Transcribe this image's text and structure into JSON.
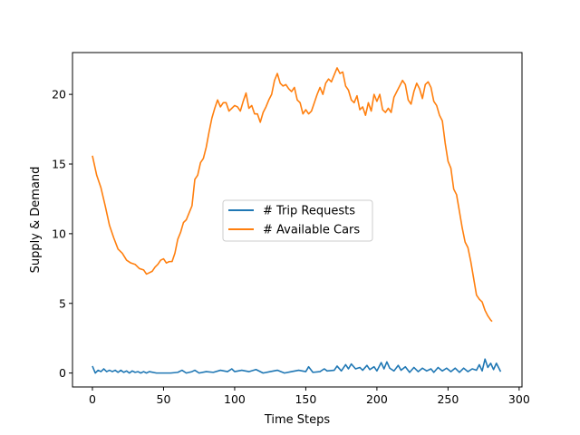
{
  "chart_data": {
    "type": "line",
    "title": "",
    "xlabel": "Time Steps",
    "ylabel": "Supply & Demand",
    "xlim": [
      -14,
      302
    ],
    "ylim": [
      -1,
      23
    ],
    "xticks": [
      0,
      50,
      100,
      150,
      200,
      250,
      300
    ],
    "yticks": [
      0,
      5,
      10,
      15,
      20
    ],
    "grid": false,
    "legend_position": "center",
    "series": [
      {
        "name": "# Trip Requests",
        "color": "#1f77b4",
        "points": [
          [
            0,
            0.5
          ],
          [
            2,
            0
          ],
          [
            4,
            0.2
          ],
          [
            6,
            0.1
          ],
          [
            8,
            0.3
          ],
          [
            10,
            0.1
          ],
          [
            12,
            0.2
          ],
          [
            14,
            0.1
          ],
          [
            16,
            0.2
          ],
          [
            18,
            0.05
          ],
          [
            20,
            0.2
          ],
          [
            22,
            0.05
          ],
          [
            24,
            0.15
          ],
          [
            26,
            0
          ],
          [
            28,
            0.15
          ],
          [
            30,
            0.05
          ],
          [
            32,
            0.1
          ],
          [
            34,
            0
          ],
          [
            36,
            0.1
          ],
          [
            38,
            0
          ],
          [
            40,
            0.1
          ],
          [
            45,
            0
          ],
          [
            50,
            0
          ],
          [
            55,
            0
          ],
          [
            60,
            0.05
          ],
          [
            63,
            0.2
          ],
          [
            66,
            0
          ],
          [
            70,
            0.1
          ],
          [
            72,
            0.2
          ],
          [
            75,
            0
          ],
          [
            80,
            0.1
          ],
          [
            85,
            0.05
          ],
          [
            90,
            0.2
          ],
          [
            95,
            0.1
          ],
          [
            98,
            0.3
          ],
          [
            100,
            0.1
          ],
          [
            105,
            0.2
          ],
          [
            110,
            0.1
          ],
          [
            115,
            0.25
          ],
          [
            120,
            0
          ],
          [
            125,
            0.1
          ],
          [
            130,
            0.2
          ],
          [
            135,
            0
          ],
          [
            140,
            0.1
          ],
          [
            145,
            0.2
          ],
          [
            150,
            0.1
          ],
          [
            152,
            0.45
          ],
          [
            155,
            0.05
          ],
          [
            160,
            0.1
          ],
          [
            163,
            0.3
          ],
          [
            165,
            0.15
          ],
          [
            170,
            0.2
          ],
          [
            172,
            0.5
          ],
          [
            175,
            0.15
          ],
          [
            178,
            0.6
          ],
          [
            180,
            0.3
          ],
          [
            182,
            0.65
          ],
          [
            185,
            0.3
          ],
          [
            188,
            0.4
          ],
          [
            190,
            0.2
          ],
          [
            193,
            0.55
          ],
          [
            195,
            0.25
          ],
          [
            198,
            0.45
          ],
          [
            200,
            0.15
          ],
          [
            203,
            0.75
          ],
          [
            205,
            0.3
          ],
          [
            207,
            0.8
          ],
          [
            209,
            0.35
          ],
          [
            212,
            0.15
          ],
          [
            215,
            0.55
          ],
          [
            217,
            0.2
          ],
          [
            220,
            0.45
          ],
          [
            223,
            0.05
          ],
          [
            226,
            0.4
          ],
          [
            229,
            0.1
          ],
          [
            232,
            0.35
          ],
          [
            235,
            0.15
          ],
          [
            238,
            0.3
          ],
          [
            240,
            0.05
          ],
          [
            243,
            0.4
          ],
          [
            246,
            0.15
          ],
          [
            249,
            0.35
          ],
          [
            252,
            0.1
          ],
          [
            255,
            0.35
          ],
          [
            258,
            0.05
          ],
          [
            261,
            0.35
          ],
          [
            264,
            0.1
          ],
          [
            267,
            0.3
          ],
          [
            270,
            0.2
          ],
          [
            272,
            0.6
          ],
          [
            274,
            0.15
          ],
          [
            276,
            1.0
          ],
          [
            278,
            0.4
          ],
          [
            280,
            0.7
          ],
          [
            282,
            0.25
          ],
          [
            284,
            0.7
          ],
          [
            286,
            0.3
          ],
          [
            287,
            0.1
          ]
        ]
      },
      {
        "name": "# Available Cars",
        "color": "#ff7f0e",
        "points": [
          [
            0,
            15.6
          ],
          [
            3,
            14.2
          ],
          [
            6,
            13.3
          ],
          [
            9,
            12.0
          ],
          [
            12,
            10.6
          ],
          [
            15,
            9.7
          ],
          [
            18,
            8.9
          ],
          [
            21,
            8.6
          ],
          [
            24,
            8.1
          ],
          [
            27,
            7.9
          ],
          [
            30,
            7.8
          ],
          [
            33,
            7.5
          ],
          [
            36,
            7.4
          ],
          [
            38,
            7.1
          ],
          [
            40,
            7.2
          ],
          [
            42,
            7.3
          ],
          [
            44,
            7.6
          ],
          [
            46,
            7.8
          ],
          [
            48,
            8.1
          ],
          [
            50,
            8.2
          ],
          [
            52,
            7.9
          ],
          [
            54,
            8.0
          ],
          [
            56,
            8.0
          ],
          [
            58,
            8.6
          ],
          [
            60,
            9.6
          ],
          [
            62,
            10.1
          ],
          [
            64,
            10.8
          ],
          [
            66,
            11.0
          ],
          [
            68,
            11.5
          ],
          [
            70,
            12.0
          ],
          [
            72,
            13.9
          ],
          [
            74,
            14.2
          ],
          [
            76,
            15.1
          ],
          [
            78,
            15.4
          ],
          [
            80,
            16.2
          ],
          [
            82,
            17.3
          ],
          [
            84,
            18.3
          ],
          [
            86,
            19.0
          ],
          [
            88,
            19.6
          ],
          [
            90,
            19.1
          ],
          [
            92,
            19.4
          ],
          [
            94,
            19.4
          ],
          [
            96,
            18.8
          ],
          [
            98,
            19.0
          ],
          [
            100,
            19.2
          ],
          [
            102,
            19.1
          ],
          [
            104,
            18.8
          ],
          [
            106,
            19.5
          ],
          [
            108,
            20.1
          ],
          [
            110,
            19.0
          ],
          [
            112,
            19.2
          ],
          [
            114,
            18.6
          ],
          [
            116,
            18.6
          ],
          [
            118,
            18.0
          ],
          [
            120,
            18.7
          ],
          [
            122,
            19.1
          ],
          [
            124,
            19.6
          ],
          [
            126,
            20.0
          ],
          [
            128,
            21.0
          ],
          [
            130,
            21.5
          ],
          [
            132,
            20.8
          ],
          [
            134,
            20.6
          ],
          [
            136,
            20.7
          ],
          [
            138,
            20.4
          ],
          [
            140,
            20.2
          ],
          [
            142,
            20.5
          ],
          [
            144,
            19.6
          ],
          [
            146,
            19.4
          ],
          [
            148,
            18.6
          ],
          [
            150,
            18.9
          ],
          [
            152,
            18.6
          ],
          [
            154,
            18.8
          ],
          [
            156,
            19.4
          ],
          [
            158,
            20.0
          ],
          [
            160,
            20.5
          ],
          [
            162,
            20.0
          ],
          [
            164,
            20.8
          ],
          [
            166,
            21.1
          ],
          [
            168,
            20.9
          ],
          [
            170,
            21.4
          ],
          [
            172,
            21.9
          ],
          [
            174,
            21.5
          ],
          [
            176,
            21.6
          ],
          [
            178,
            20.6
          ],
          [
            180,
            20.3
          ],
          [
            182,
            19.6
          ],
          [
            184,
            19.4
          ],
          [
            186,
            19.9
          ],
          [
            188,
            18.9
          ],
          [
            190,
            19.1
          ],
          [
            192,
            18.5
          ],
          [
            194,
            19.4
          ],
          [
            196,
            18.8
          ],
          [
            198,
            20.0
          ],
          [
            200,
            19.5
          ],
          [
            202,
            20.0
          ],
          [
            204,
            18.9
          ],
          [
            206,
            18.7
          ],
          [
            208,
            19.0
          ],
          [
            210,
            18.7
          ],
          [
            212,
            19.8
          ],
          [
            214,
            20.2
          ],
          [
            216,
            20.6
          ],
          [
            218,
            21.0
          ],
          [
            220,
            20.7
          ],
          [
            222,
            19.6
          ],
          [
            224,
            19.3
          ],
          [
            226,
            20.2
          ],
          [
            228,
            20.8
          ],
          [
            230,
            20.4
          ],
          [
            232,
            19.7
          ],
          [
            234,
            20.7
          ],
          [
            236,
            20.9
          ],
          [
            238,
            20.5
          ],
          [
            240,
            19.5
          ],
          [
            242,
            19.2
          ],
          [
            244,
            18.5
          ],
          [
            246,
            18.1
          ],
          [
            248,
            16.5
          ],
          [
            250,
            15.2
          ],
          [
            252,
            14.7
          ],
          [
            254,
            13.2
          ],
          [
            256,
            12.8
          ],
          [
            258,
            11.6
          ],
          [
            260,
            10.4
          ],
          [
            262,
            9.4
          ],
          [
            264,
            9.0
          ],
          [
            266,
            8.0
          ],
          [
            268,
            6.8
          ],
          [
            270,
            5.6
          ],
          [
            272,
            5.3
          ],
          [
            274,
            5.1
          ],
          [
            276,
            4.5
          ],
          [
            278,
            4.1
          ],
          [
            280,
            3.8
          ],
          [
            281,
            3.7
          ]
        ]
      }
    ]
  }
}
